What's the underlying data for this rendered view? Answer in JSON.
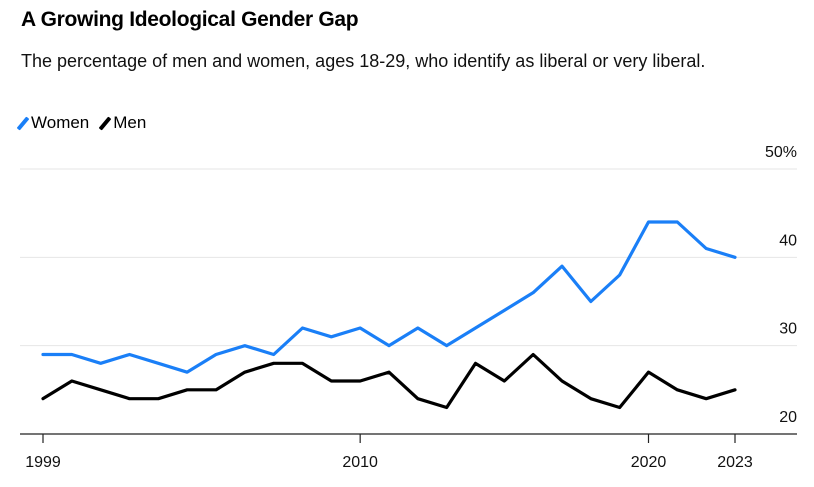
{
  "title": "A Growing Ideological Gender Gap",
  "subtitle": "The percentage of men and women, ages 18-29, who identify as liberal or very liberal.",
  "chart_data": {
    "type": "line",
    "title": "A Growing Ideological Gender Gap",
    "x": [
      1999,
      2000,
      2001,
      2002,
      2003,
      2004,
      2005,
      2006,
      2007,
      2008,
      2009,
      2010,
      2011,
      2012,
      2013,
      2014,
      2015,
      2016,
      2017,
      2018,
      2019,
      2020,
      2021,
      2022,
      2023
    ],
    "series": [
      {
        "name": "Women",
        "color": "#1a7ff7",
        "values": [
          29,
          29,
          28,
          29,
          28,
          27,
          29,
          30,
          29,
          32,
          31,
          32,
          30,
          32,
          30,
          32,
          34,
          36,
          39,
          35,
          38,
          44,
          44,
          41,
          40
        ]
      },
      {
        "name": "Men",
        "color": "#000000",
        "values": [
          24,
          26,
          25,
          24,
          24,
          25,
          25,
          27,
          28,
          28,
          26,
          26,
          27,
          24,
          23,
          28,
          26,
          29,
          26,
          24,
          23,
          27,
          25,
          24,
          25
        ]
      }
    ],
    "xticks": [
      1999,
      2010,
      2020,
      2023
    ],
    "xtick_labels": [
      "1999",
      "2010",
      "2020",
      "2023"
    ],
    "yticks": [
      20,
      30,
      40,
      50
    ],
    "ytick_labels": [
      "20",
      "30",
      "40",
      "50%"
    ],
    "ylim": [
      20,
      50
    ],
    "xlim": [
      1999,
      2023
    ],
    "grid": "horizontal",
    "legend": "top-left",
    "yaxis_side": "right"
  }
}
